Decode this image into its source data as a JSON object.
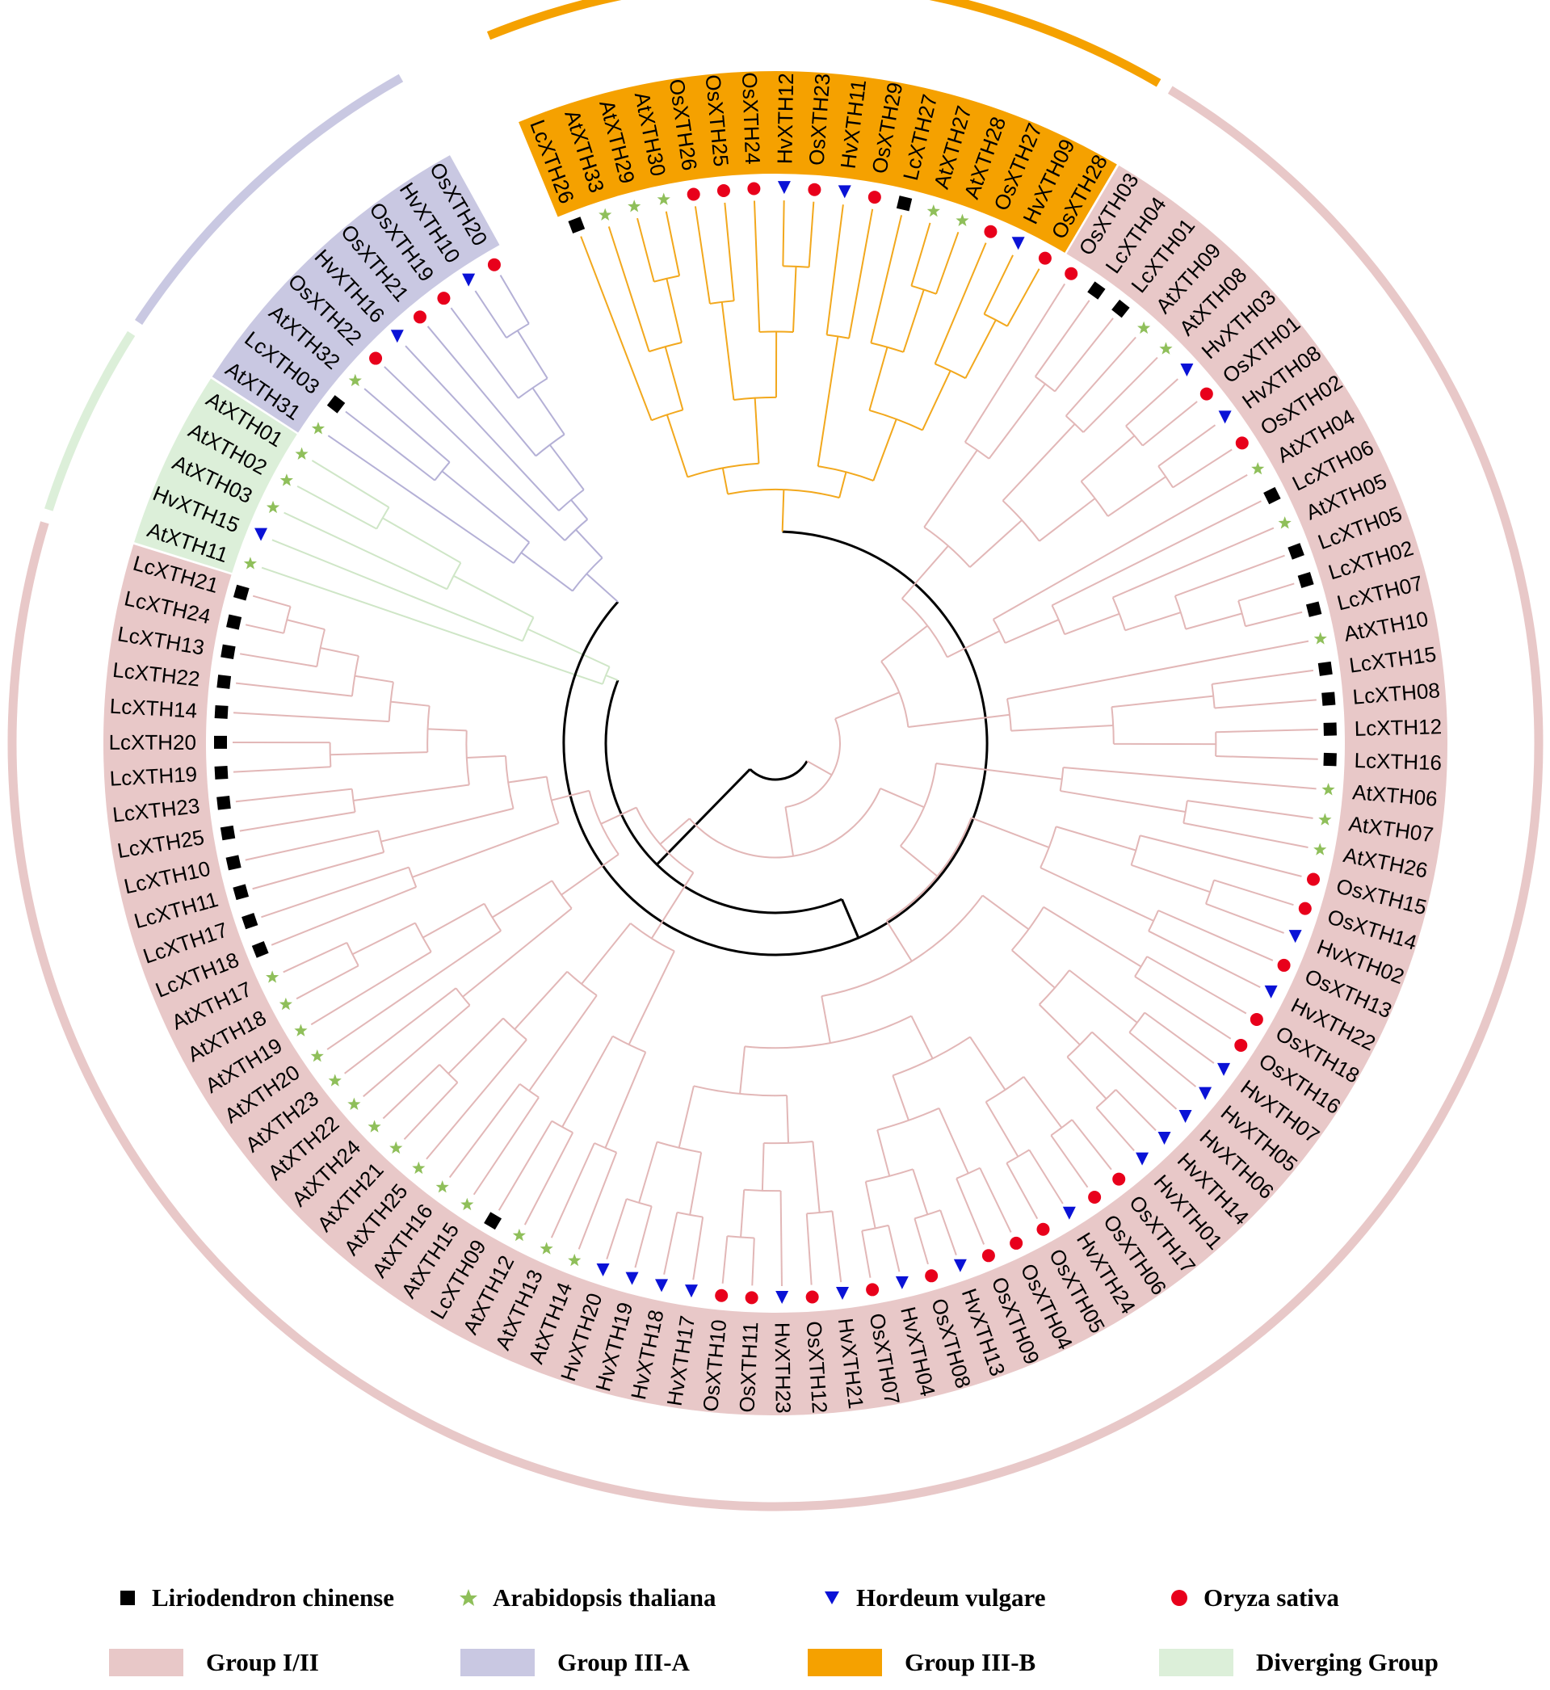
{
  "figure": {
    "type": "circular phylogenetic tree",
    "colors": {
      "group_I_II": "#e8c8c8",
      "group_III_A": "#c9c8e2",
      "group_III_B": "#f5a100",
      "diverging": "#dcefd9",
      "branch_I_II": "#e2b7b7",
      "branch_III_A": "#b4b0d6",
      "branch_III_B": "#f2a81d",
      "branch_diverging": "#cfe6c7",
      "lc": "#000000",
      "at": "#8fbf5a",
      "hv": "#0a12d6",
      "os": "#e8001b"
    },
    "leaves": [
      {
        "label": "LcXTH26",
        "species": "lc",
        "group": "III-B"
      },
      {
        "label": "AtXTH33",
        "species": "at",
        "group": "III-B"
      },
      {
        "label": "AtXTH29",
        "species": "at",
        "group": "III-B"
      },
      {
        "label": "AtXTH30",
        "species": "at",
        "group": "III-B"
      },
      {
        "label": "OsXTH26",
        "species": "os",
        "group": "III-B"
      },
      {
        "label": "OsXTH25",
        "species": "os",
        "group": "III-B"
      },
      {
        "label": "OsXTH24",
        "species": "os",
        "group": "III-B"
      },
      {
        "label": "HvXTH12",
        "species": "hv",
        "group": "III-B"
      },
      {
        "label": "OsXTH23",
        "species": "os",
        "group": "III-B"
      },
      {
        "label": "HvXTH11",
        "species": "hv",
        "group": "III-B"
      },
      {
        "label": "OsXTH29",
        "species": "os",
        "group": "III-B"
      },
      {
        "label": "LcXTH27",
        "species": "lc",
        "group": "III-B"
      },
      {
        "label": "AtXTH27",
        "species": "at",
        "group": "III-B"
      },
      {
        "label": "AtXTH28",
        "species": "at",
        "group": "III-B"
      },
      {
        "label": "OsXTH27",
        "species": "os",
        "group": "III-B"
      },
      {
        "label": "HvXTH09",
        "species": "hv",
        "group": "III-B"
      },
      {
        "label": "OsXTH28",
        "species": "os",
        "group": "III-B"
      },
      {
        "label": "OsXTH03",
        "species": "os",
        "group": "I/II"
      },
      {
        "label": "LcXTH04",
        "species": "lc",
        "group": "I/II"
      },
      {
        "label": "LcXTH01",
        "species": "lc",
        "group": "I/II"
      },
      {
        "label": "AtXTH09",
        "species": "at",
        "group": "I/II"
      },
      {
        "label": "AtXTH08",
        "species": "at",
        "group": "I/II"
      },
      {
        "label": "HvXTH03",
        "species": "hv",
        "group": "I/II"
      },
      {
        "label": "OsXTH01",
        "species": "os",
        "group": "I/II"
      },
      {
        "label": "HvXTH08",
        "species": "hv",
        "group": "I/II"
      },
      {
        "label": "OsXTH02",
        "species": "os",
        "group": "I/II"
      },
      {
        "label": "AtXTH04",
        "species": "at",
        "group": "I/II"
      },
      {
        "label": "LcXTH06",
        "species": "lc",
        "group": "I/II"
      },
      {
        "label": "AtXTH05",
        "species": "at",
        "group": "I/II"
      },
      {
        "label": "LcXTH05",
        "species": "lc",
        "group": "I/II"
      },
      {
        "label": "LcXTH02",
        "species": "lc",
        "group": "I/II"
      },
      {
        "label": "LcXTH07",
        "species": "lc",
        "group": "I/II"
      },
      {
        "label": "AtXTH10",
        "species": "at",
        "group": "I/II"
      },
      {
        "label": "LcXTH15",
        "species": "lc",
        "group": "I/II"
      },
      {
        "label": "LcXTH08",
        "species": "lc",
        "group": "I/II"
      },
      {
        "label": "LcXTH12",
        "species": "lc",
        "group": "I/II"
      },
      {
        "label": "LcXTH16",
        "species": "lc",
        "group": "I/II"
      },
      {
        "label": "AtXTH06",
        "species": "at",
        "group": "I/II"
      },
      {
        "label": "AtXTH07",
        "species": "at",
        "group": "I/II"
      },
      {
        "label": "AtXTH26",
        "species": "at",
        "group": "I/II"
      },
      {
        "label": "OsXTH15",
        "species": "os",
        "group": "I/II"
      },
      {
        "label": "OsXTH14",
        "species": "os",
        "group": "I/II"
      },
      {
        "label": "HvXTH02",
        "species": "hv",
        "group": "I/II"
      },
      {
        "label": "OsXTH13",
        "species": "os",
        "group": "I/II"
      },
      {
        "label": "HvXTH22",
        "species": "hv",
        "group": "I/II"
      },
      {
        "label": "OsXTH18",
        "species": "os",
        "group": "I/II"
      },
      {
        "label": "OsXTH16",
        "species": "os",
        "group": "I/II"
      },
      {
        "label": "HvXTH07",
        "species": "hv",
        "group": "I/II"
      },
      {
        "label": "HvXTH05",
        "species": "hv",
        "group": "I/II"
      },
      {
        "label": "HvXTH06",
        "species": "hv",
        "group": "I/II"
      },
      {
        "label": "HvXTH14",
        "species": "hv",
        "group": "I/II"
      },
      {
        "label": "HvXTH01",
        "species": "hv",
        "group": "I/II"
      },
      {
        "label": "OsXTH17",
        "species": "os",
        "group": "I/II"
      },
      {
        "label": "OsXTH06",
        "species": "os",
        "group": "I/II"
      },
      {
        "label": "HvXTH24",
        "species": "hv",
        "group": "I/II"
      },
      {
        "label": "OsXTH05",
        "species": "os",
        "group": "I/II"
      },
      {
        "label": "OsXTH04",
        "species": "os",
        "group": "I/II"
      },
      {
        "label": "OsXTH09",
        "species": "os",
        "group": "I/II"
      },
      {
        "label": "HvXTH13",
        "species": "hv",
        "group": "I/II"
      },
      {
        "label": "OsXTH08",
        "species": "os",
        "group": "I/II"
      },
      {
        "label": "HvXTH04",
        "species": "hv",
        "group": "I/II"
      },
      {
        "label": "OsXTH07",
        "species": "os",
        "group": "I/II"
      },
      {
        "label": "HvXTH21",
        "species": "hv",
        "group": "I/II"
      },
      {
        "label": "OsXTH12",
        "species": "os",
        "group": "I/II"
      },
      {
        "label": "HvXTH23",
        "species": "hv",
        "group": "I/II"
      },
      {
        "label": "OsXTH11",
        "species": "os",
        "group": "I/II"
      },
      {
        "label": "OsXTH10",
        "species": "os",
        "group": "I/II"
      },
      {
        "label": "HvXTH17",
        "species": "hv",
        "group": "I/II"
      },
      {
        "label": "HvXTH18",
        "species": "hv",
        "group": "I/II"
      },
      {
        "label": "HvXTH19",
        "species": "hv",
        "group": "I/II"
      },
      {
        "label": "HvXTH20",
        "species": "hv",
        "group": "I/II"
      },
      {
        "label": "AtXTH14",
        "species": "at",
        "group": "I/II"
      },
      {
        "label": "AtXTH13",
        "species": "at",
        "group": "I/II"
      },
      {
        "label": "AtXTH12",
        "species": "at",
        "group": "I/II"
      },
      {
        "label": "LcXTH09",
        "species": "lc",
        "group": "I/II"
      },
      {
        "label": "AtXTH15",
        "species": "at",
        "group": "I/II"
      },
      {
        "label": "AtXTH16",
        "species": "at",
        "group": "I/II"
      },
      {
        "label": "AtXTH25",
        "species": "at",
        "group": "I/II"
      },
      {
        "label": "AtXTH21",
        "species": "at",
        "group": "I/II"
      },
      {
        "label": "AtXTH24",
        "species": "at",
        "group": "I/II"
      },
      {
        "label": "AtXTH22",
        "species": "at",
        "group": "I/II"
      },
      {
        "label": "AtXTH23",
        "species": "at",
        "group": "I/II"
      },
      {
        "label": "AtXTH20",
        "species": "at",
        "group": "I/II"
      },
      {
        "label": "AtXTH19",
        "species": "at",
        "group": "I/II"
      },
      {
        "label": "AtXTH18",
        "species": "at",
        "group": "I/II"
      },
      {
        "label": "AtXTH17",
        "species": "at",
        "group": "I/II"
      },
      {
        "label": "LcXTH18",
        "species": "lc",
        "group": "I/II"
      },
      {
        "label": "LcXTH17",
        "species": "lc",
        "group": "I/II"
      },
      {
        "label": "LcXTH11",
        "species": "lc",
        "group": "I/II"
      },
      {
        "label": "LcXTH10",
        "species": "lc",
        "group": "I/II"
      },
      {
        "label": "LcXTH25",
        "species": "lc",
        "group": "I/II"
      },
      {
        "label": "LcXTH23",
        "species": "lc",
        "group": "I/II"
      },
      {
        "label": "LcXTH19",
        "species": "lc",
        "group": "I/II"
      },
      {
        "label": "LcXTH20",
        "species": "lc",
        "group": "I/II"
      },
      {
        "label": "LcXTH14",
        "species": "lc",
        "group": "I/II"
      },
      {
        "label": "LcXTH22",
        "species": "lc",
        "group": "I/II"
      },
      {
        "label": "LcXTH13",
        "species": "lc",
        "group": "I/II"
      },
      {
        "label": "LcXTH24",
        "species": "lc",
        "group": "I/II"
      },
      {
        "label": "LcXTH21",
        "species": "lc",
        "group": "I/II"
      },
      {
        "label": "AtXTH11",
        "species": "at",
        "group": "Diverging"
      },
      {
        "label": "HvXTH15",
        "species": "hv",
        "group": "Diverging"
      },
      {
        "label": "AtXTH03",
        "species": "at",
        "group": "Diverging"
      },
      {
        "label": "AtXTH02",
        "species": "at",
        "group": "Diverging"
      },
      {
        "label": "AtXTH01",
        "species": "at",
        "group": "Diverging"
      },
      {
        "label": "AtXTH31",
        "species": "at",
        "group": "III-A"
      },
      {
        "label": "LcXTH03",
        "species": "lc",
        "group": "III-A"
      },
      {
        "label": "AtXTH32",
        "species": "at",
        "group": "III-A"
      },
      {
        "label": "OsXTH22",
        "species": "os",
        "group": "III-A"
      },
      {
        "label": "HvXTH16",
        "species": "hv",
        "group": "III-A"
      },
      {
        "label": "OsXTH21",
        "species": "os",
        "group": "III-A"
      },
      {
        "label": "OsXTH19",
        "species": "os",
        "group": "III-A"
      },
      {
        "label": "HvXTH10",
        "species": "hv",
        "group": "III-A"
      },
      {
        "label": "OsXTH20",
        "species": "os",
        "group": "III-A"
      }
    ]
  },
  "legend": {
    "species": [
      {
        "label": "Liriodendron chinense",
        "marker": "square",
        "key": "lc"
      },
      {
        "label": "Arabidopsis thaliana",
        "marker": "star",
        "key": "at"
      },
      {
        "label": "Hordeum vulgare",
        "marker": "triangle",
        "key": "hv"
      },
      {
        "label": "Oryza sativa",
        "marker": "circle",
        "key": "os"
      }
    ],
    "groups": [
      {
        "label": "Group I/II",
        "key": "group_I_II"
      },
      {
        "label": "Group III-A",
        "key": "group_III_A"
      },
      {
        "label": "Group III-B",
        "key": "group_III_B"
      },
      {
        "label": "Diverging Group",
        "key": "diverging"
      }
    ]
  }
}
